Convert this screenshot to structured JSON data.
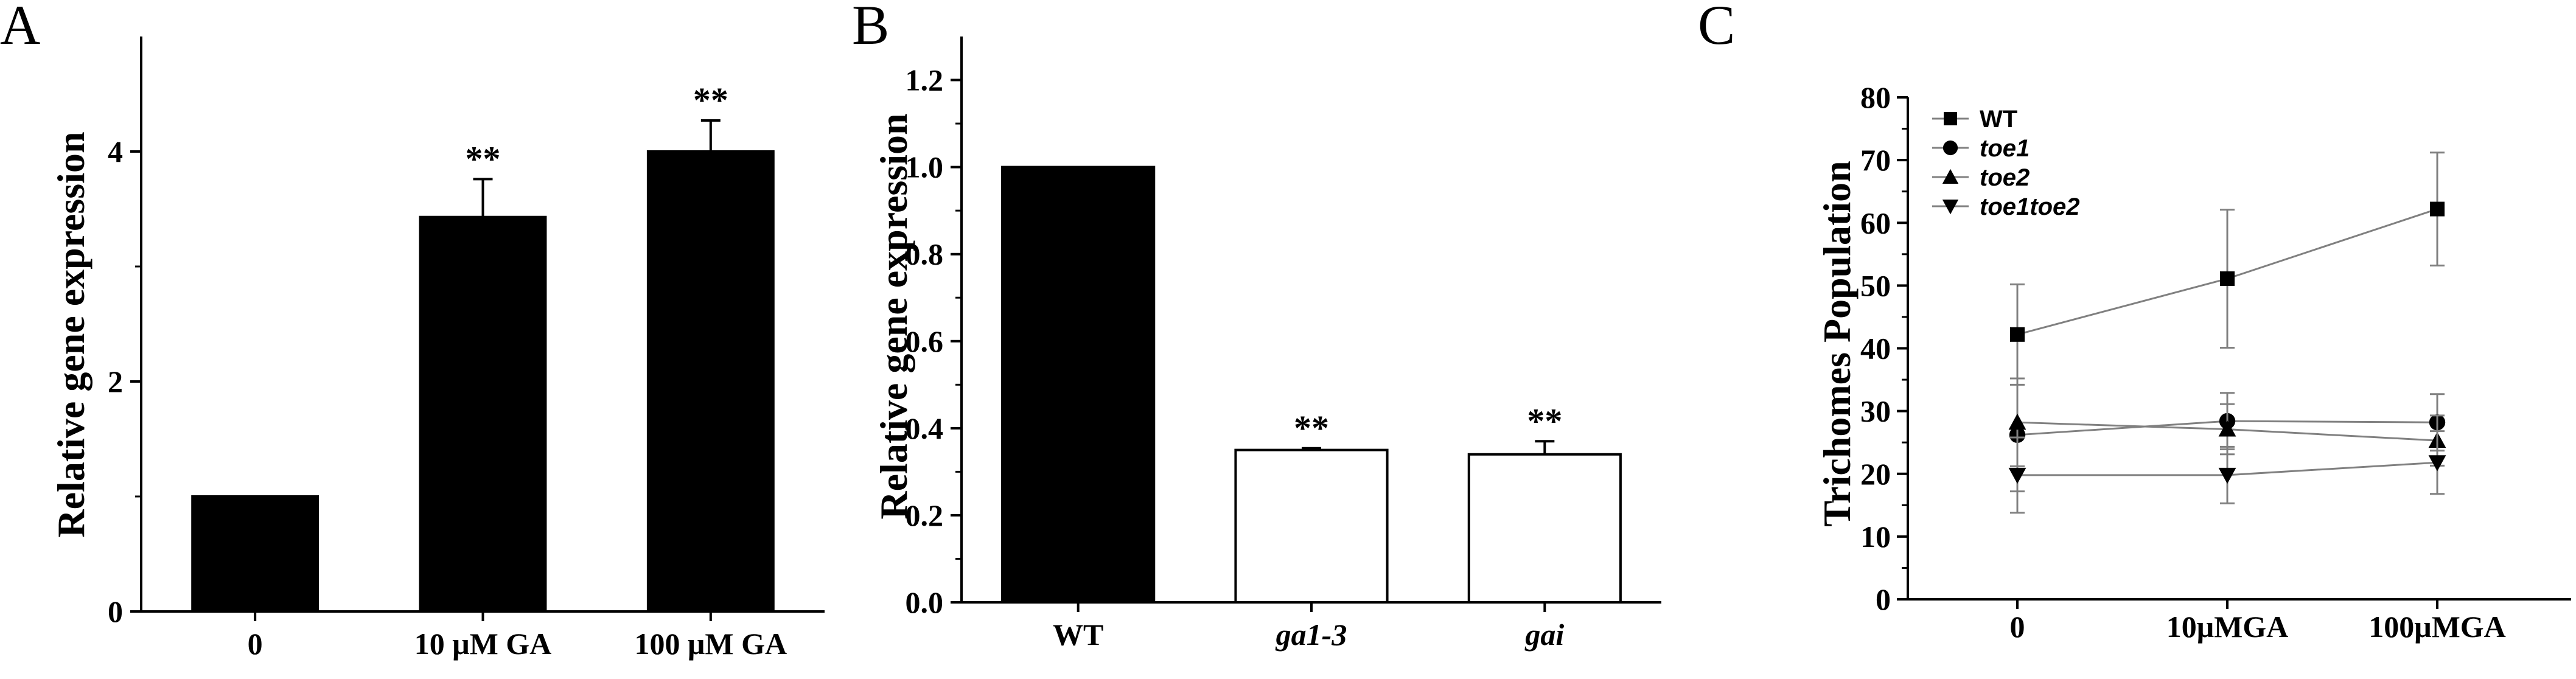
{
  "colors": {
    "ink": "#000000",
    "paper": "#ffffff",
    "line_gray": "#808080"
  },
  "chart_data": [
    {
      "panel": "A",
      "type": "bar",
      "ylabel": "Relative gene expression",
      "ylim": [
        0,
        5
      ],
      "yticks": [
        0,
        2,
        4
      ],
      "categories": [
        "0",
        "10 μM GA",
        "100 μM GA"
      ],
      "values": [
        1.0,
        3.43,
        4.0
      ],
      "errors": [
        0,
        0.33,
        0.27
      ],
      "significance": [
        "",
        "**",
        "**"
      ],
      "bar_colors": [
        "#000000",
        "#000000",
        "#000000"
      ],
      "grid": false
    },
    {
      "panel": "B",
      "type": "bar",
      "ylabel": "Relative gene expression",
      "ylim": [
        0,
        1.3
      ],
      "yticks": [
        "0.0",
        "0.2",
        "0.4",
        "0.6",
        "0.8",
        "1.0",
        "1.2"
      ],
      "categories": [
        "WT",
        "ga1-3",
        "gai"
      ],
      "category_italic": [
        false,
        true,
        true
      ],
      "values": [
        1.0,
        0.35,
        0.34
      ],
      "errors": [
        0,
        0.004,
        0.03
      ],
      "significance": [
        "",
        "**",
        "**"
      ],
      "bar_colors": [
        "#000000",
        "#ffffff",
        "#ffffff"
      ],
      "grid": false
    },
    {
      "panel": "C",
      "type": "line",
      "ylabel": "Trichomes Population",
      "ylim": [
        0,
        80
      ],
      "yticks": [
        0,
        10,
        20,
        30,
        40,
        50,
        60,
        70,
        80
      ],
      "x": [
        "0",
        "10μMGA",
        "100μMGA"
      ],
      "series": [
        {
          "name": "WT",
          "marker": "square",
          "values": [
            42.2,
            51.1,
            62.2
          ],
          "errors": [
            8,
            11,
            9
          ]
        },
        {
          "name": "toe1",
          "marker": "circle",
          "values": [
            26.2,
            28.4,
            28.2
          ],
          "errors": [
            9,
            4.5,
            4.5
          ]
        },
        {
          "name": "toe2",
          "marker": "triangle-up",
          "values": [
            28.2,
            27.1,
            25.3
          ],
          "errors": [
            7,
            4,
            4
          ]
        },
        {
          "name": "toe1toe2",
          "marker": "triangle-down",
          "values": [
            19.8,
            19.8,
            21.8
          ],
          "errors": [
            6,
            4.5,
            5
          ]
        }
      ],
      "legend_italic": [
        false,
        true,
        true,
        true
      ],
      "legend": "top-left",
      "grid": false
    }
  ]
}
